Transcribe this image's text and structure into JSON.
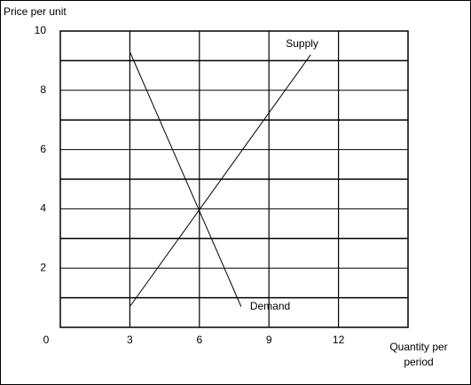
{
  "chart_data": {
    "type": "line",
    "y_label": "Price per unit",
    "x_label": [
      "Quantity per",
      "period"
    ],
    "xlim": [
      0,
      15
    ],
    "ylim": [
      0,
      10
    ],
    "xticks": [
      0,
      3,
      6,
      9,
      12
    ],
    "yticks": [
      2,
      4,
      6,
      8,
      10
    ],
    "y_minor_ticks": [
      1,
      3,
      5,
      7,
      9
    ],
    "grid": true,
    "series": [
      {
        "name": "Supply",
        "color": "#000000",
        "x": [
          3,
          10.8
        ],
        "values": [
          0.7,
          9.2
        ]
      },
      {
        "name": "Demand",
        "color": "#000000",
        "x": [
          3,
          7.8
        ],
        "values": [
          9.3,
          0.7
        ]
      }
    ]
  }
}
